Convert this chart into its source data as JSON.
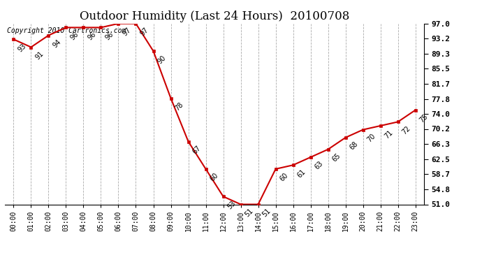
{
  "title": "Outdoor Humidity (Last 24 Hours)  20100708",
  "copyright": "Copyright 2010 Cartronics.com",
  "x_labels": [
    "00:00",
    "01:00",
    "02:00",
    "03:00",
    "04:00",
    "05:00",
    "06:00",
    "07:00",
    "08:00",
    "09:00",
    "10:00",
    "11:00",
    "12:00",
    "13:00",
    "14:00",
    "15:00",
    "16:00",
    "17:00",
    "18:00",
    "19:00",
    "20:00",
    "21:00",
    "22:00",
    "23:00"
  ],
  "y_values": [
    93,
    91,
    94,
    96,
    96,
    96,
    97,
    97,
    90,
    78,
    67,
    60,
    53,
    51,
    51,
    60,
    61,
    63,
    65,
    68,
    70,
    71,
    72,
    75
  ],
  "y_labels_right": [
    "97.0",
    "93.2",
    "89.3",
    "85.5",
    "81.7",
    "77.8",
    "74.0",
    "70.2",
    "66.3",
    "62.5",
    "58.7",
    "54.8",
    "51.0"
  ],
  "y_right_ticks": [
    97.0,
    93.2,
    89.3,
    85.5,
    81.7,
    77.8,
    74.0,
    70.2,
    66.3,
    62.5,
    58.7,
    54.8,
    51.0
  ],
  "ylim_min": 51.0,
  "ylim_max": 97.0,
  "line_color": "#cc0000",
  "marker_color": "#cc0000",
  "background_color": "#ffffff",
  "grid_color": "#aaaaaa",
  "title_fontsize": 12,
  "annotation_fontsize": 7,
  "copyright_fontsize": 7
}
